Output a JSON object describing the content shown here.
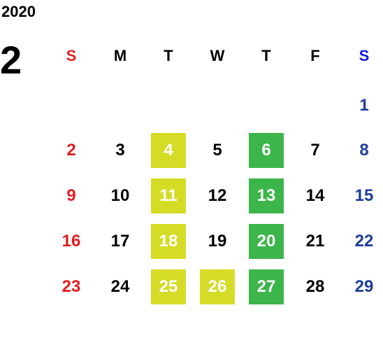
{
  "year": "2020",
  "month": "2",
  "weekdays": [
    "S",
    "M",
    "T",
    "W",
    "T",
    "F",
    "S"
  ],
  "colors": {
    "sunday": "#e21d20",
    "saturday": "#1e3f97",
    "saturday_header": "#1414e6",
    "highlight_yellow": "#d5dc26",
    "highlight_green": "#3cb54a"
  },
  "weeks": [
    [
      "",
      "",
      "",
      "",
      "",
      "",
      "1"
    ],
    [
      "2",
      "3",
      "4",
      "5",
      "6",
      "7",
      "8"
    ],
    [
      "9",
      "10",
      "11",
      "12",
      "13",
      "14",
      "15"
    ],
    [
      "16",
      "17",
      "18",
      "19",
      "20",
      "21",
      "22"
    ],
    [
      "23",
      "24",
      "25",
      "26",
      "27",
      "28",
      "29"
    ]
  ],
  "highlighted_yellow": [
    "4",
    "11",
    "18",
    "25",
    "26"
  ],
  "highlighted_green": [
    "6",
    "13",
    "20",
    "27"
  ]
}
